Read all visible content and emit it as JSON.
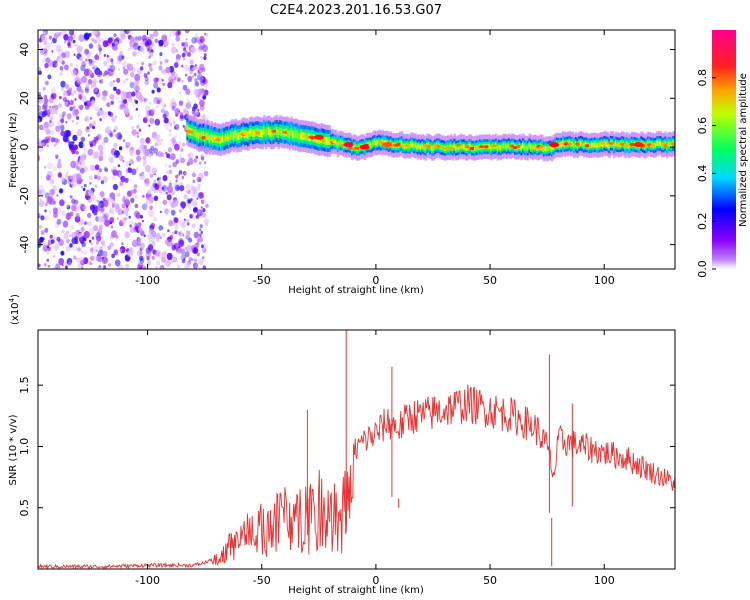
{
  "title": "C2E4.2023.201.16.53.G07",
  "chart_data": [
    {
      "type": "heatmap",
      "xlabel": "Height of straight line (km)",
      "ylabel": "Frequency (Hz)",
      "xlim": [
        -148,
        131
      ],
      "ylim": [
        -50,
        48
      ],
      "x_ticks": [
        -100,
        -50,
        0,
        50,
        100
      ],
      "y_ticks": [
        -40,
        -20,
        0,
        20,
        40
      ],
      "colorbar": {
        "label": "Normalized spectral amplitude",
        "range": [
          0,
          1
        ],
        "ticks": [
          0.0,
          0.2,
          0.4,
          0.6,
          0.8
        ],
        "colors": [
          "#ffffff",
          "#8a00ff",
          "#0000ff",
          "#00d8ff",
          "#00ff40",
          "#f0ff00",
          "#ff8a00",
          "#ff0000",
          "#ff0090"
        ]
      },
      "noise_region_x": [
        -148,
        -78
      ],
      "ridge": {
        "x": [
          -83,
          -78,
          -70,
          -60,
          -50,
          -40,
          -30,
          -20,
          -15,
          -10,
          -5,
          0,
          5,
          10,
          20,
          40,
          60,
          70,
          75,
          80,
          100,
          120,
          131
        ],
        "y": [
          7,
          5,
          3,
          5,
          6,
          6,
          4,
          2,
          1,
          0,
          0,
          2,
          1,
          1,
          0,
          0,
          0,
          0,
          -1,
          1,
          1,
          1,
          1
        ]
      },
      "ridge_peaks": [
        {
          "x": -25,
          "y": 4,
          "level": 0.85
        },
        {
          "x": -12,
          "y": 1,
          "level": 0.95
        },
        {
          "x": -5,
          "y": 0,
          "level": 0.9
        },
        {
          "x": 5,
          "y": 1,
          "level": 0.8
        },
        {
          "x": 78,
          "y": 1,
          "level": 0.9
        },
        {
          "x": 115,
          "y": 1,
          "level": 0.85
        }
      ]
    },
    {
      "type": "line",
      "xlabel": "Height of straight line (km)",
      "ylabel": "SNR (10 * v/v)",
      "exponent_label": "(x10",
      "exponent_sup": "4",
      "exponent_close": ")",
      "xlim": [
        -148,
        131
      ],
      "ylim": [
        0,
        1.95
      ],
      "x_ticks": [
        -100,
        -50,
        0,
        50,
        100
      ],
      "y_ticks": [
        0.5,
        1.0,
        1.5
      ],
      "series": [
        {
          "color": "#e83232",
          "x": [
            -148,
            -120,
            -100,
            -80,
            -75,
            -70,
            -65,
            -60,
            -55,
            -50,
            -45,
            -40,
            -35,
            -30,
            -25,
            -20,
            -15,
            -12,
            -10,
            -5,
            0,
            5,
            10,
            15,
            20,
            30,
            40,
            50,
            60,
            70,
            75,
            78,
            80,
            90,
            100,
            110,
            120,
            131
          ],
          "y": [
            0.02,
            0.02,
            0.03,
            0.03,
            0.05,
            0.1,
            0.2,
            0.3,
            0.35,
            0.4,
            0.45,
            0.5,
            0.5,
            0.55,
            0.6,
            0.6,
            0.6,
            0.6,
            0.95,
            1.05,
            1.1,
            1.2,
            1.15,
            1.25,
            1.25,
            1.3,
            1.35,
            1.3,
            1.25,
            1.15,
            1.0,
            0.75,
            1.05,
            1.0,
            0.95,
            0.9,
            0.8,
            0.7
          ]
        }
      ],
      "spikes": [
        {
          "x": -13,
          "y": 1.95
        },
        {
          "x": -30,
          "y": 1.3
        },
        {
          "x": 7,
          "y": 1.65
        },
        {
          "x": 76,
          "y": 1.75
        },
        {
          "x": 77,
          "y": 0.02
        },
        {
          "x": 86,
          "y": 1.35
        },
        {
          "x": 10,
          "y": 0.5
        }
      ]
    }
  ]
}
